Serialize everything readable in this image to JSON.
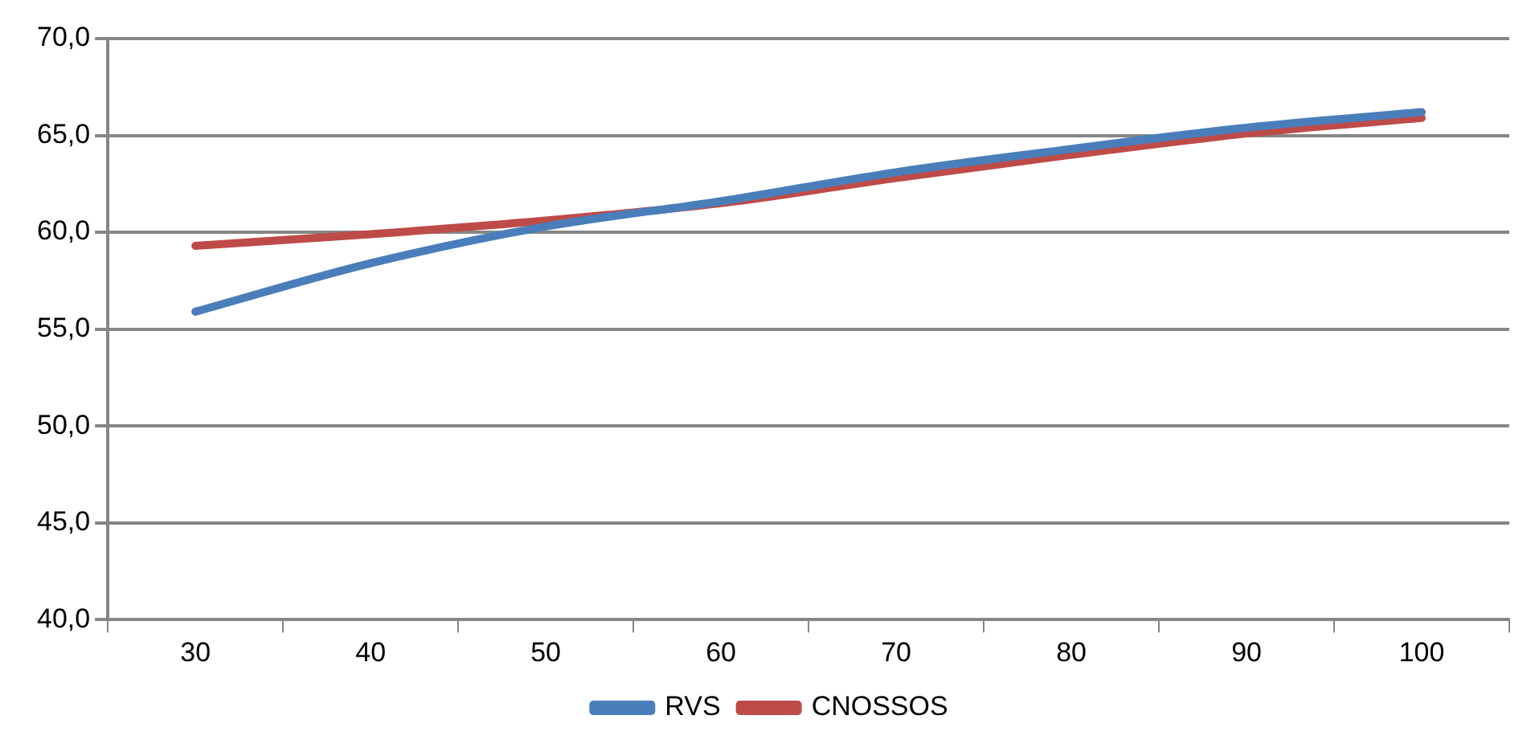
{
  "chart_data": {
    "type": "line",
    "categories": [
      "30",
      "40",
      "50",
      "60",
      "70",
      "80",
      "90",
      "100"
    ],
    "series": [
      {
        "name": "RVS",
        "color": "#4a7ebb",
        "values": [
          55.9,
          58.4,
          60.3,
          61.6,
          63.1,
          64.3,
          65.4,
          66.2
        ]
      },
      {
        "name": "CNOSSOS",
        "color": "#be4b48",
        "values": [
          59.3,
          59.9,
          60.6,
          61.5,
          62.8,
          64.0,
          65.1,
          65.9
        ]
      }
    ],
    "ylim": [
      40,
      70
    ],
    "yticks": [
      {
        "value": 40,
        "label": "40,0"
      },
      {
        "value": 45,
        "label": "45,0"
      },
      {
        "value": 50,
        "label": "50,0"
      },
      {
        "value": 55,
        "label": "55,0"
      },
      {
        "value": 60,
        "label": "60,0"
      },
      {
        "value": 65,
        "label": "65,0"
      },
      {
        "value": 70,
        "label": "70,0"
      }
    ],
    "grid": "y",
    "legend": "bottom",
    "marker": "none",
    "line_style": "solid"
  }
}
